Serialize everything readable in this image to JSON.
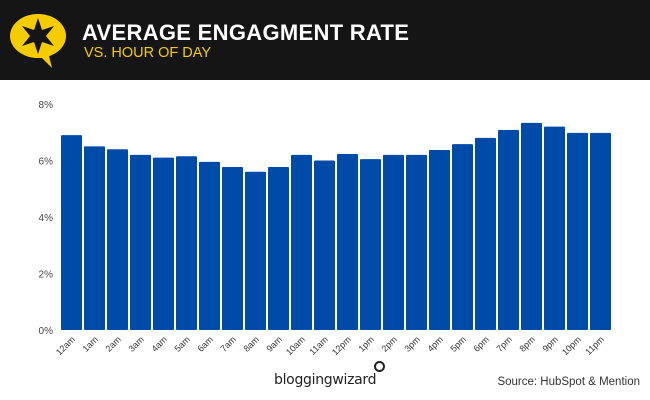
{
  "header": {
    "title": "AVERAGE ENGAGMENT RATE",
    "subtitle": "VS. HOUR OF DAY",
    "icon": "star-speech-bubble-icon",
    "accent_color": "#f5cc00",
    "background_color": "#151515"
  },
  "chart_data": {
    "type": "bar",
    "categories": [
      "12am",
      "1am",
      "2am",
      "3am",
      "4am",
      "5am",
      "6am",
      "7am",
      "8am",
      "9am",
      "10am",
      "11am",
      "12pm",
      "1pm",
      "2pm",
      "3pm",
      "4pm",
      "5pm",
      "6pm",
      "7pm",
      "8pm",
      "9pm",
      "10pm",
      "11pm"
    ],
    "values": [
      6.9,
      6.5,
      6.4,
      6.2,
      6.1,
      6.15,
      5.95,
      5.77,
      5.6,
      5.77,
      6.2,
      6.0,
      6.23,
      6.05,
      6.2,
      6.2,
      6.37,
      6.58,
      6.8,
      7.08,
      7.33,
      7.2,
      6.98,
      6.98
    ],
    "unit": "%",
    "ylim": [
      0,
      8
    ],
    "yticks": [
      "0%",
      "2%",
      "4%",
      "6%",
      "8%"
    ],
    "grid": false,
    "bar_color": "#004aa8",
    "title": "AVERAGE ENGAGMENT RATE",
    "subtitle": "VS. HOUR OF DAY",
    "xlabel": "",
    "ylabel": ""
  },
  "footer": {
    "brand": "bloggingwizard",
    "source": "Source: HubSpot & Mention"
  }
}
